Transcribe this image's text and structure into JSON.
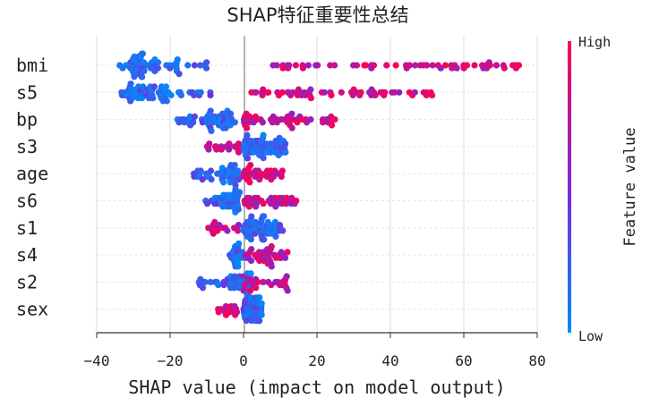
{
  "chart_data": {
    "type": "scatter",
    "subtype": "shap-beeswarm",
    "title": "SHAP特征重要性总结",
    "xlabel": "SHAP value (impact on model output)",
    "ylabel": "",
    "xlim": [
      -40,
      80
    ],
    "xticks": [
      -40,
      -20,
      0,
      20,
      40,
      60,
      80
    ],
    "grid": true,
    "colorbar": {
      "high_label": "High",
      "low_label": "Low",
      "title": "Feature value",
      "low_color": "#008afb",
      "high_color": "#ff0052"
    },
    "features": [
      {
        "name": "bmi",
        "negative_span": [
          -36,
          -10
        ],
        "positive_span": [
          8,
          75
        ],
        "low_cluster": [
          -33,
          -23
        ],
        "count_neg": 62,
        "count_pos": 52,
        "outliers": [
          {
            "x": 75,
            "value": 1.0
          },
          {
            "x": 65,
            "value": 1.0
          },
          {
            "x": 55,
            "value": 0.97
          },
          {
            "x": 53,
            "value": 0.95
          }
        ]
      },
      {
        "name": "s5",
        "negative_span": [
          -36,
          -8
        ],
        "positive_span": [
          2,
          52
        ],
        "low_cluster": [
          -32,
          -20
        ],
        "count_neg": 64,
        "count_pos": 56,
        "outliers": [
          {
            "x": 51,
            "value": 0.9
          },
          {
            "x": 46,
            "value": 0.95
          }
        ]
      },
      {
        "name": "bp",
        "negative_span": [
          -18,
          -1
        ],
        "positive_span": [
          0,
          25
        ],
        "low_cluster": [
          -10,
          -3
        ],
        "count_neg": 52,
        "count_pos": 48,
        "outliers": []
      },
      {
        "name": "s3",
        "negative_span": [
          -10,
          -1
        ],
        "positive_span": [
          0,
          12
        ],
        "low_cluster": [
          2,
          10
        ],
        "count_neg": 44,
        "count_pos": 38,
        "invert": true,
        "outliers": []
      },
      {
        "name": "age",
        "negative_span": [
          -14,
          -1
        ],
        "positive_span": [
          0,
          12
        ],
        "low_cluster": [
          -6,
          -1
        ],
        "count_neg": 44,
        "count_pos": 36,
        "outliers": []
      },
      {
        "name": "s6",
        "negative_span": [
          -11,
          -1
        ],
        "positive_span": [
          0,
          15
        ],
        "low_cluster": [
          -6,
          -1
        ],
        "count_neg": 40,
        "count_pos": 38,
        "outliers": []
      },
      {
        "name": "s1",
        "negative_span": [
          -10,
          -1
        ],
        "positive_span": [
          0,
          11
        ],
        "low_cluster": [
          1,
          9
        ],
        "count_neg": 38,
        "count_pos": 34,
        "invert": true,
        "outliers": []
      },
      {
        "name": "s4",
        "negative_span": [
          -4,
          -1
        ],
        "positive_span": [
          0,
          12
        ],
        "low_cluster": [
          -3,
          0
        ],
        "count_neg": 22,
        "count_pos": 40,
        "outliers": []
      },
      {
        "name": "s2",
        "negative_span": [
          -13,
          -1
        ],
        "positive_span": [
          0,
          12
        ],
        "low_cluster": [
          -4,
          2
        ],
        "count_neg": 38,
        "count_pos": 30,
        "outliers": []
      },
      {
        "name": "sex",
        "negative_span": [
          -7,
          -1
        ],
        "positive_span": [
          0,
          5
        ],
        "low_cluster": [
          1,
          5
        ],
        "count_neg": 36,
        "count_pos": 26,
        "invert": true,
        "outliers": []
      }
    ]
  }
}
